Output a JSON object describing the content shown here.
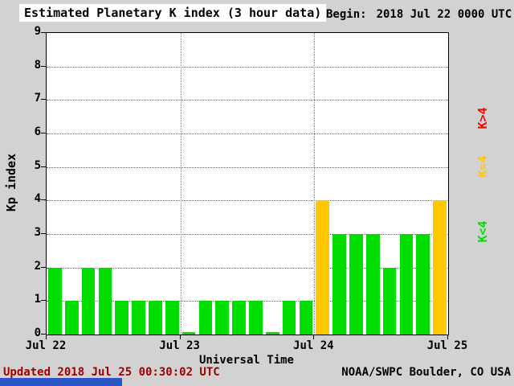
{
  "header": {
    "title": "Estimated Planetary K index (3 hour data)",
    "begin_label": "Begin:",
    "begin_value": "2018 Jul 22 0000 UTC"
  },
  "footer": {
    "updated": "Updated 2018 Jul 25 00:30:02 UTC",
    "source": "NOAA/SWPC Boulder, CO USA"
  },
  "chart_data": {
    "type": "bar",
    "title": "Estimated Planetary K index (3 hour data)",
    "xlabel": "Universal Time",
    "ylabel": "Kp index",
    "ylim": [
      0,
      9
    ],
    "yticks": [
      0,
      1,
      2,
      3,
      4,
      5,
      6,
      7,
      8,
      9
    ],
    "xtick_labels": [
      "Jul 22",
      "Jul 23",
      "Jul 24",
      "Jul 25"
    ],
    "hours_per_bar": 3,
    "begin": "2018 Jul 22 0000 UTC",
    "values": [
      2,
      1,
      2,
      2,
      1,
      1,
      1,
      1,
      0,
      1,
      1,
      1,
      1,
      0,
      1,
      1,
      4,
      3,
      3,
      3,
      2,
      3,
      3,
      4
    ],
    "colors": {
      "k_lt4": "#00dd00",
      "k_eq4": "#ffc800",
      "k_gt4": "#ff0000"
    },
    "legend": [
      {
        "label": "K>4",
        "color": "#ff0000"
      },
      {
        "label": "K=4",
        "color": "#ffc800"
      },
      {
        "label": "K<4",
        "color": "#00dd00"
      }
    ],
    "legend_position": "right",
    "grid": "dotted horizontal lines at each Kp integer, dotted vertical lines at day boundaries"
  },
  "misc": {
    "bottom_strip_color": "#2a56c8"
  }
}
